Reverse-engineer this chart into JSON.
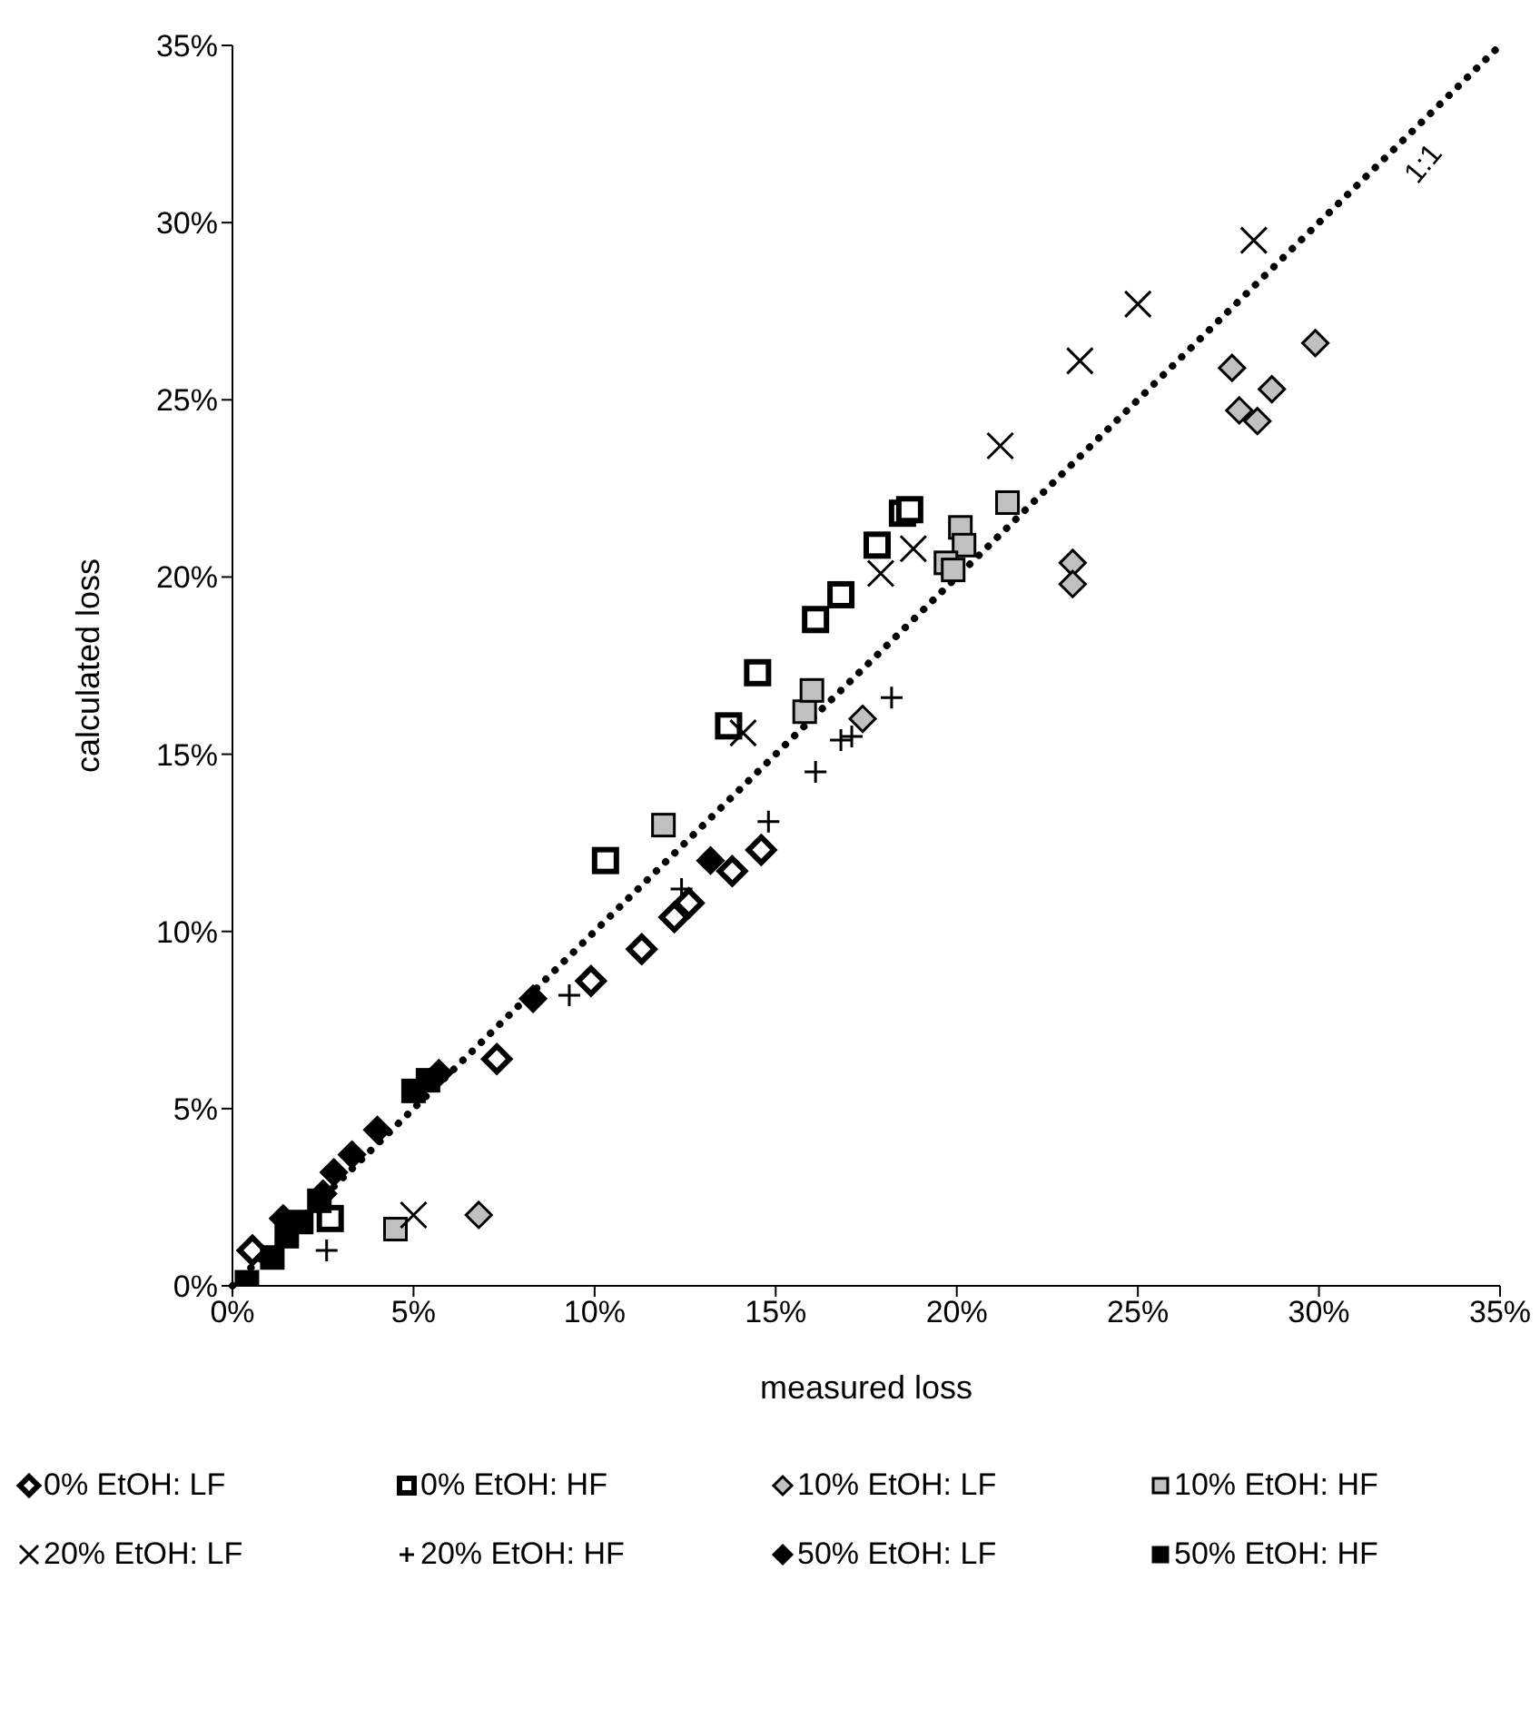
{
  "chart_data": {
    "type": "scatter",
    "xlabel": "measured loss",
    "ylabel": "calculated loss",
    "legend": "bottom",
    "xlim": [
      0,
      35
    ],
    "ylim": [
      0,
      35
    ],
    "xticks": [
      {
        "value": 0,
        "label": "0%"
      },
      {
        "value": 5,
        "label": "5%"
      },
      {
        "value": 10,
        "label": "10%"
      },
      {
        "value": 15,
        "label": "15%"
      },
      {
        "value": 20,
        "label": "20%"
      },
      {
        "value": 25,
        "label": "25%"
      },
      {
        "value": 30,
        "label": "30%"
      },
      {
        "value": 35,
        "label": "35%"
      }
    ],
    "yticks": [
      {
        "value": 0,
        "label": "0%"
      },
      {
        "value": 5,
        "label": "5%"
      },
      {
        "value": 10,
        "label": "10%"
      },
      {
        "value": 15,
        "label": "15%"
      },
      {
        "value": 20,
        "label": "20%"
      },
      {
        "value": 25,
        "label": "25%"
      },
      {
        "value": 30,
        "label": "30%"
      },
      {
        "value": 35,
        "label": "35%"
      }
    ],
    "series": [
      {
        "name": "0% EtOH: LF",
        "color": "#ffffff",
        "marker": "diamond",
        "x": [
          0.55,
          7.3,
          9.9,
          11.3,
          12.2,
          12.6,
          13.8,
          14.6
        ],
        "values": [
          1.0,
          6.4,
          8.6,
          9.5,
          10.4,
          10.8,
          11.7,
          12.3
        ]
      },
      {
        "name": "0% EtOH: HF",
        "color": "#ffffff",
        "marker": "square",
        "x": [
          2.7,
          10.3,
          13.7,
          14.5,
          16.1,
          16.8,
          17.8,
          18.5,
          18.7
        ],
        "values": [
          1.9,
          12.0,
          15.8,
          17.3,
          18.8,
          19.5,
          20.9,
          21.8,
          21.9
        ]
      },
      {
        "name": "10% EtOH: LF",
        "color": "#c0c0c0",
        "marker": "diamond",
        "x": [
          6.8,
          17.4,
          23.2,
          23.2,
          27.6,
          27.8,
          28.3,
          28.7,
          29.9
        ],
        "values": [
          2.0,
          16.0,
          20.4,
          19.8,
          25.9,
          24.7,
          24.4,
          25.3,
          26.6
        ]
      },
      {
        "name": "10% EtOH: HF",
        "color": "#c0c0c0",
        "marker": "square",
        "x": [
          4.5,
          11.9,
          15.8,
          16.0,
          21.4,
          20.1,
          20.2,
          19.7,
          19.9
        ],
        "values": [
          1.6,
          13.0,
          16.2,
          16.8,
          22.1,
          21.4,
          20.9,
          20.4,
          20.2
        ]
      },
      {
        "name": "20% EtOH: LF",
        "color": "#000000",
        "marker": "x",
        "x": [
          5.0,
          14.1,
          17.9,
          18.8,
          21.2,
          23.4,
          25.0,
          28.2
        ],
        "values": [
          2.0,
          15.6,
          20.1,
          20.8,
          23.7,
          26.1,
          27.7,
          29.5
        ]
      },
      {
        "name": "20% EtOH: HF",
        "color": "#000000",
        "marker": "cross",
        "x": [
          2.6,
          9.3,
          12.4,
          14.8,
          16.1,
          16.8,
          17.1,
          18.2
        ],
        "values": [
          1.0,
          8.2,
          11.2,
          13.1,
          14.5,
          15.4,
          15.5,
          16.6
        ]
      },
      {
        "name": "50% EtOH: LF",
        "color": "#000000",
        "marker": "diamond",
        "x": [
          1.4,
          2.5,
          2.8,
          3.3,
          4.0,
          5.7,
          8.3,
          13.2
        ],
        "values": [
          1.9,
          2.6,
          3.2,
          3.7,
          4.4,
          6.0,
          8.1,
          12.0
        ]
      },
      {
        "name": "50% EtOH: HF",
        "color": "#000000",
        "marker": "square",
        "x": [
          0.4,
          1.1,
          1.5,
          1.9,
          2.4,
          5.0,
          5.4
        ],
        "values": [
          0.1,
          0.8,
          1.4,
          1.8,
          2.4,
          5.5,
          5.8
        ]
      },
      {
        "name": "1:1",
        "type": "line",
        "color": "#000000",
        "line_style": "dotted",
        "marker": "none",
        "x": [
          0,
          35
        ],
        "values": [
          0,
          35
        ]
      }
    ]
  }
}
